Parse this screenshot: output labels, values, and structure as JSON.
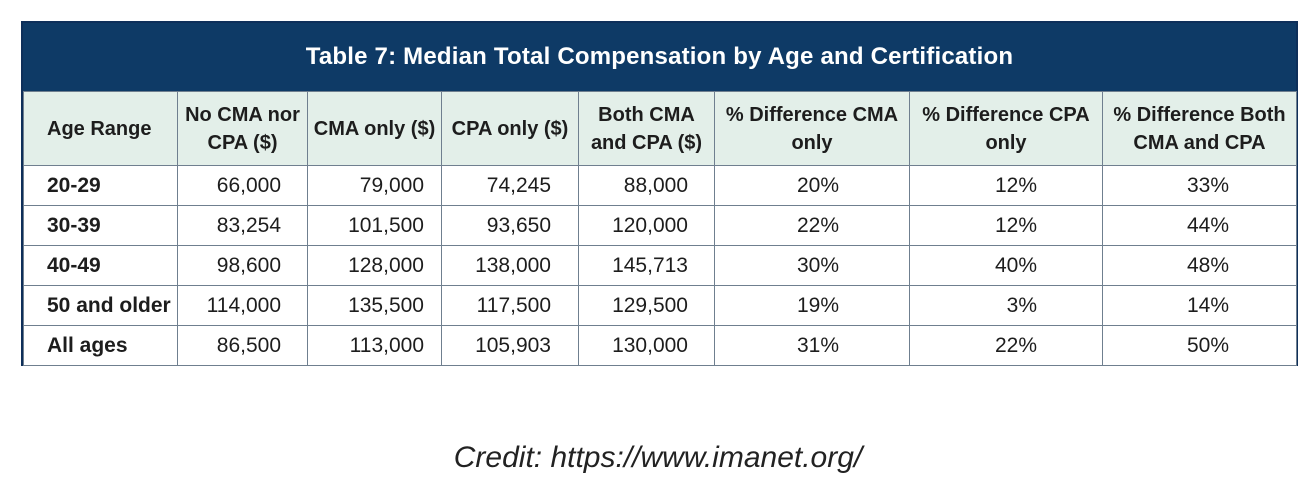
{
  "table": {
    "title": "Table 7: Median Total Compensation by Age and Certification",
    "columns": [
      "Age Range",
      "No CMA nor CPA ($)",
      "CMA only ($)",
      "CPA only ($)",
      "Both CMA and CPA ($)",
      "% Difference CMA only",
      "% Difference CPA only",
      "% Difference Both CMA and CPA"
    ],
    "rows": [
      [
        "20-29",
        "66,000",
        "79,000",
        "74,245",
        "88,000",
        "20%",
        "12%",
        "33%"
      ],
      [
        "30-39",
        "83,254",
        "101,500",
        "93,650",
        "120,000",
        "22%",
        "12%",
        "44%"
      ],
      [
        "40-49",
        "98,600",
        "128,000",
        "138,000",
        "145,713",
        "30%",
        "40%",
        "48%"
      ],
      [
        "50 and older",
        "114,000",
        "135,500",
        "117,500",
        "129,500",
        "19%",
        "3%",
        "14%"
      ],
      [
        "All ages",
        "86,500",
        "113,000",
        "105,903",
        "130,000",
        "31%",
        "22%",
        "50%"
      ]
    ]
  },
  "credit": "Credit: https://www.imanet.org/",
  "colors": {
    "title_bg": "#0e3a66",
    "header_bg": "#e3efe9",
    "border": "#6f7f8f"
  }
}
